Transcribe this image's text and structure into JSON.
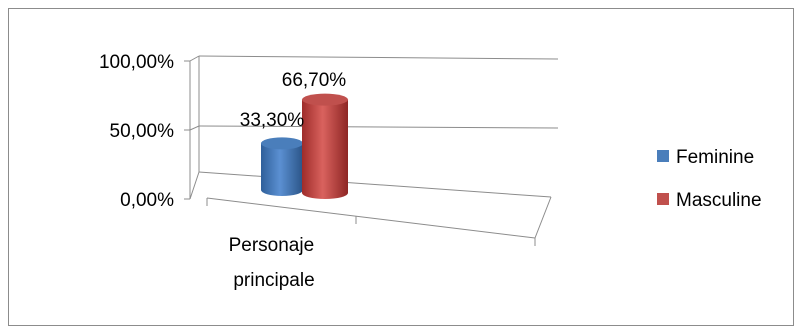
{
  "chart_data": {
    "type": "bar",
    "style": "3d-cylinder",
    "categories": [
      "Personaje principale"
    ],
    "series": [
      {
        "name": "Feminine",
        "values": [
          33.3
        ],
        "label": "33,30%",
        "color": "#4a7ebb"
      },
      {
        "name": "Masculine",
        "values": [
          66.7
        ],
        "label": "66,70%",
        "color": "#c0504d"
      }
    ],
    "y_ticks": [
      "0,00%",
      "50,00%",
      "100,00%"
    ],
    "ylim": [
      0,
      100
    ],
    "grid": true,
    "legend_position": "right"
  }
}
